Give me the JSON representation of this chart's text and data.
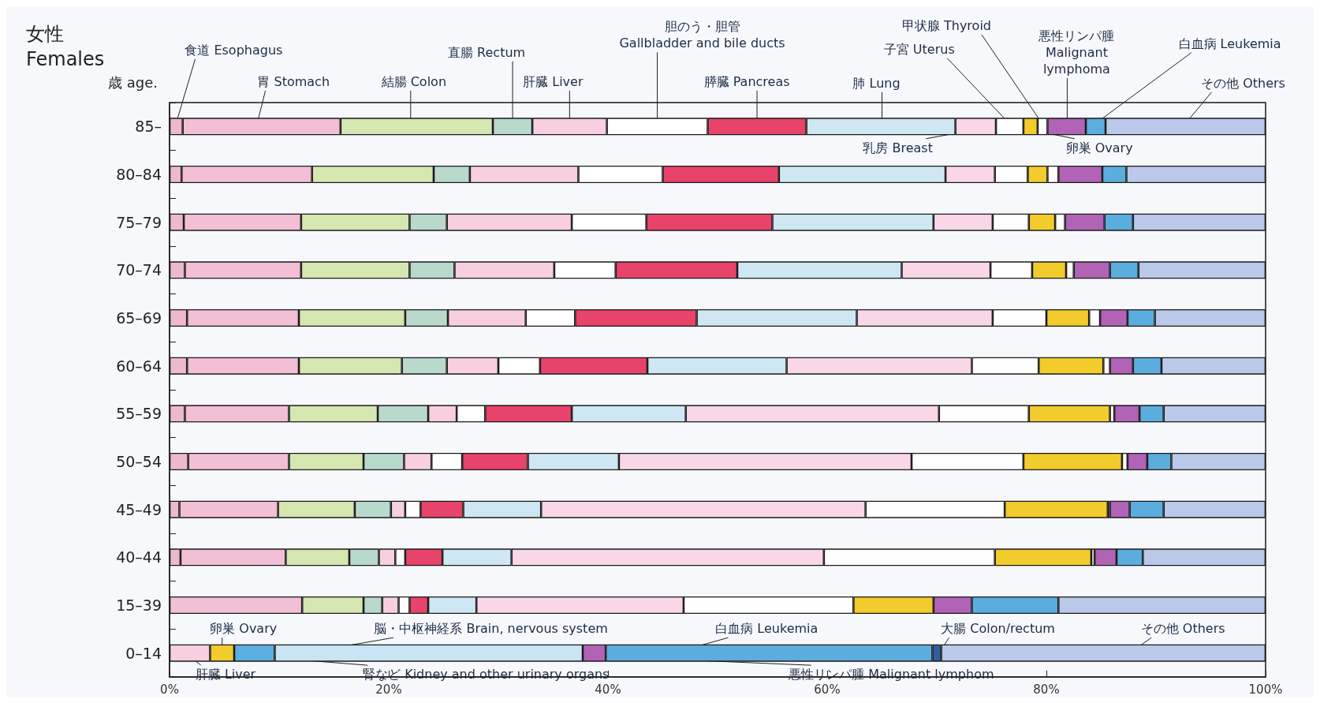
{
  "chart_data": {
    "type": "bar",
    "orientation": "horizontal",
    "stacked": true,
    "title": "女性\nFemales",
    "ylabel": "歳 age.",
    "categories": [
      "85–",
      "80–84",
      "75–79",
      "70–74",
      "65–69",
      "60–64",
      "55–59",
      "50–54",
      "45–49",
      "40–44",
      "15–39",
      "0–14"
    ],
    "xlim": [
      0,
      100
    ],
    "xticks": [
      {
        "value": 0,
        "label": "0%"
      },
      {
        "value": 20,
        "label": "20%"
      },
      {
        "value": 40,
        "label": "40%"
      },
      {
        "value": 60,
        "label": "60%"
      },
      {
        "value": 80,
        "label": "80%"
      },
      {
        "value": 100,
        "label": "100%"
      }
    ],
    "series": [
      {
        "color": "#eeb9cc",
        "values": [
          1.2,
          1.1,
          1.3,
          1.4,
          1.6,
          1.6,
          1.4,
          1.7,
          0.9,
          1.0,
          null,
          null
        ]
      },
      {
        "color": "#f2bfd6",
        "values": [
          14.4,
          11.9,
          10.7,
          10.6,
          10.2,
          10.2,
          9.5,
          9.2,
          9.0,
          9.6,
          12.1,
          null
        ]
      },
      {
        "color": "#d6e6b0",
        "values": [
          13.9,
          11.1,
          9.9,
          9.9,
          9.7,
          9.4,
          8.1,
          6.8,
          7.0,
          5.8,
          5.6,
          null
        ]
      },
      {
        "color": "#b9d9cc",
        "values": [
          3.6,
          3.3,
          3.4,
          4.1,
          3.9,
          4.1,
          4.6,
          3.7,
          3.3,
          2.7,
          1.7,
          null
        ]
      },
      {
        "color": "#f8cfe0",
        "values": [
          6.8,
          9.9,
          11.4,
          9.1,
          7.1,
          4.7,
          2.6,
          2.5,
          1.3,
          1.5,
          1.5,
          3.7
        ]
      },
      {
        "color": "#ffffff",
        "values": [
          9.2,
          7.7,
          6.8,
          5.6,
          4.5,
          3.8,
          2.6,
          2.8,
          1.4,
          0.9,
          1.0,
          null
        ]
      },
      {
        "color": "#e8436a",
        "values": [
          9.0,
          10.6,
          11.5,
          11.1,
          11.1,
          9.8,
          7.9,
          6.0,
          3.9,
          3.4,
          1.7,
          null
        ]
      },
      {
        "color": "#cfe7f3",
        "values": [
          13.6,
          15.2,
          14.7,
          15.0,
          14.6,
          12.7,
          10.4,
          8.3,
          7.1,
          6.3,
          4.4,
          null
        ]
      },
      {
        "color": "#f9d7e8",
        "values": [
          3.7,
          4.5,
          5.4,
          8.1,
          12.4,
          16.9,
          23.1,
          26.7,
          29.6,
          28.5,
          18.9,
          null
        ]
      },
      {
        "color": "#fefefe",
        "values": [
          2.5,
          3.0,
          3.3,
          3.8,
          4.9,
          6.1,
          8.2,
          10.2,
          12.7,
          15.6,
          15.5,
          null
        ]
      },
      {
        "color": "#f2cb2c",
        "values": [
          1.3,
          1.8,
          2.4,
          3.1,
          3.9,
          5.9,
          7.4,
          9.0,
          9.4,
          8.8,
          7.3,
          2.2
        ]
      },
      {
        "color": "#fdfdfd",
        "values": [
          0.9,
          1.0,
          0.9,
          0.7,
          1.0,
          0.6,
          0.4,
          0.5,
          0.2,
          0.3,
          null,
          null
        ]
      },
      {
        "color": "#5aaee0",
        "values": [
          null,
          null,
          null,
          null,
          null,
          null,
          null,
          null,
          null,
          null,
          null,
          3.7
        ]
      },
      {
        "color": "#c9e4f3",
        "values": [
          null,
          null,
          null,
          null,
          null,
          null,
          null,
          null,
          null,
          null,
          null,
          28.1
        ]
      },
      {
        "color": "#b163b5",
        "values": [
          3.5,
          4.0,
          3.6,
          3.3,
          2.5,
          2.1,
          2.3,
          1.8,
          1.8,
          2.0,
          3.5,
          2.1
        ]
      },
      {
        "color": "#5badde",
        "values": [
          1.8,
          2.2,
          2.6,
          2.6,
          2.5,
          2.6,
          2.2,
          2.2,
          3.1,
          2.4,
          7.9,
          29.8
        ]
      },
      {
        "color": "#2f5f9e",
        "values": [
          null,
          null,
          null,
          null,
          null,
          null,
          null,
          null,
          null,
          null,
          null,
          0.8
        ]
      },
      {
        "color": "#bac9ea",
        "values": [
          14.6,
          12.7,
          12.1,
          11.6,
          10.1,
          9.5,
          9.3,
          8.6,
          9.3,
          11.2,
          18.9,
          29.6
        ]
      }
    ],
    "annotations": [
      "食道 Esophagus",
      "胃 Stomach",
      "結腸 Colon",
      "直腸 Rectum",
      "肝臓 Liver",
      "胆のう・胆管\nGallbladder and bile ducts",
      "膵臓 Pancreas",
      "肺 Lung",
      "乳房 Breast",
      "子宮 Uterus",
      "甲状腺 Thyroid",
      "卵巣 Ovary",
      "悪性リンパ腫\nMalignant\nlymphoma",
      "白血病 Leukemia",
      "その他 Others",
      "卵巣 Ovary",
      "脳・中枢神経系 Brain, nervous system",
      "白血病 Leukemia",
      "大腸 Colon/rectum",
      "その他 Others",
      "肝臓 Liver",
      "腎など Kidney and other urinary organs",
      "悪性リンパ腫 Malignant lymphom"
    ]
  }
}
